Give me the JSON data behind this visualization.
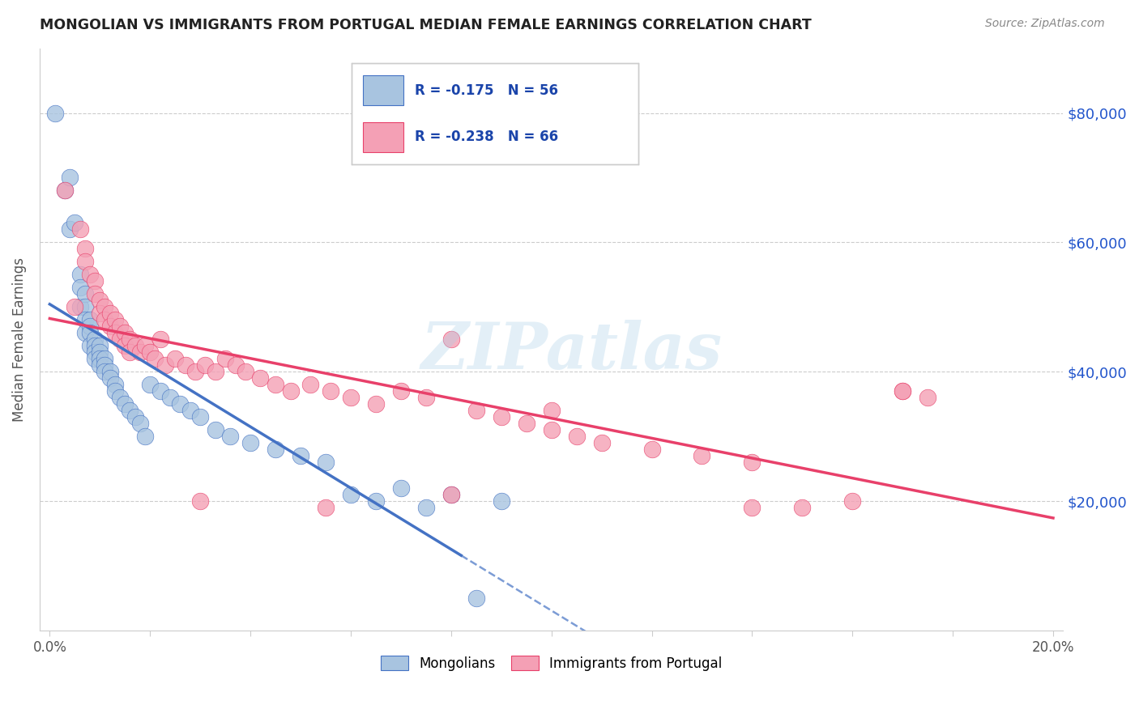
{
  "title": "MONGOLIAN VS IMMIGRANTS FROM PORTUGAL MEDIAN FEMALE EARNINGS CORRELATION CHART",
  "source": "Source: ZipAtlas.com",
  "ylabel": "Median Female Earnings",
  "ytick_labels": [
    "$20,000",
    "$40,000",
    "$60,000",
    "$80,000"
  ],
  "ytick_values": [
    20000,
    40000,
    60000,
    80000
  ],
  "legend_label1": "Mongolians",
  "legend_label2": "Immigrants from Portugal",
  "R1": -0.175,
  "N1": 56,
  "R2": -0.238,
  "N2": 66,
  "color1": "#a8c4e0",
  "color2": "#f4a0b5",
  "line_color1": "#4472C4",
  "line_color2": "#E8406A",
  "watermark": "ZIPatlas",
  "xmin": 0.0,
  "xmax": 0.2,
  "ymin": 0,
  "ymax": 90000,
  "mongolian_x": [
    0.001,
    0.003,
    0.004,
    0.004,
    0.005,
    0.006,
    0.006,
    0.006,
    0.007,
    0.007,
    0.007,
    0.007,
    0.008,
    0.008,
    0.008,
    0.008,
    0.009,
    0.009,
    0.009,
    0.009,
    0.01,
    0.01,
    0.01,
    0.01,
    0.011,
    0.011,
    0.011,
    0.012,
    0.012,
    0.013,
    0.013,
    0.014,
    0.015,
    0.016,
    0.017,
    0.018,
    0.019,
    0.02,
    0.022,
    0.024,
    0.026,
    0.028,
    0.03,
    0.033,
    0.036,
    0.04,
    0.045,
    0.05,
    0.055,
    0.06,
    0.065,
    0.07,
    0.075,
    0.08,
    0.085,
    0.09
  ],
  "mongolian_y": [
    80000,
    68000,
    70000,
    62000,
    63000,
    55000,
    53000,
    50000,
    52000,
    50000,
    48000,
    46000,
    48000,
    47000,
    46000,
    44000,
    45000,
    44000,
    43000,
    42000,
    44000,
    43000,
    42000,
    41000,
    42000,
    41000,
    40000,
    40000,
    39000,
    38000,
    37000,
    36000,
    35000,
    34000,
    33000,
    32000,
    30000,
    38000,
    37000,
    36000,
    35000,
    34000,
    33000,
    31000,
    30000,
    29000,
    28000,
    27000,
    26000,
    21000,
    20000,
    22000,
    19000,
    21000,
    5000,
    20000
  ],
  "portugal_x": [
    0.003,
    0.005,
    0.006,
    0.007,
    0.007,
    0.008,
    0.009,
    0.009,
    0.01,
    0.01,
    0.011,
    0.011,
    0.012,
    0.012,
    0.013,
    0.013,
    0.014,
    0.014,
    0.015,
    0.015,
    0.016,
    0.016,
    0.017,
    0.018,
    0.019,
    0.02,
    0.021,
    0.022,
    0.023,
    0.025,
    0.027,
    0.029,
    0.031,
    0.033,
    0.035,
    0.037,
    0.039,
    0.042,
    0.045,
    0.048,
    0.052,
    0.056,
    0.06,
    0.065,
    0.07,
    0.075,
    0.08,
    0.085,
    0.09,
    0.095,
    0.1,
    0.105,
    0.11,
    0.12,
    0.13,
    0.14,
    0.15,
    0.16,
    0.17,
    0.175,
    0.03,
    0.055,
    0.08,
    0.1,
    0.14,
    0.17
  ],
  "portugal_y": [
    68000,
    50000,
    62000,
    59000,
    57000,
    55000,
    54000,
    52000,
    51000,
    49000,
    50000,
    48000,
    49000,
    47000,
    48000,
    46000,
    47000,
    45000,
    46000,
    44000,
    45000,
    43000,
    44000,
    43000,
    44000,
    43000,
    42000,
    45000,
    41000,
    42000,
    41000,
    40000,
    41000,
    40000,
    42000,
    41000,
    40000,
    39000,
    38000,
    37000,
    38000,
    37000,
    36000,
    35000,
    37000,
    36000,
    45000,
    34000,
    33000,
    32000,
    31000,
    30000,
    29000,
    28000,
    27000,
    26000,
    19000,
    20000,
    37000,
    36000,
    20000,
    19000,
    21000,
    34000,
    19000,
    37000
  ]
}
